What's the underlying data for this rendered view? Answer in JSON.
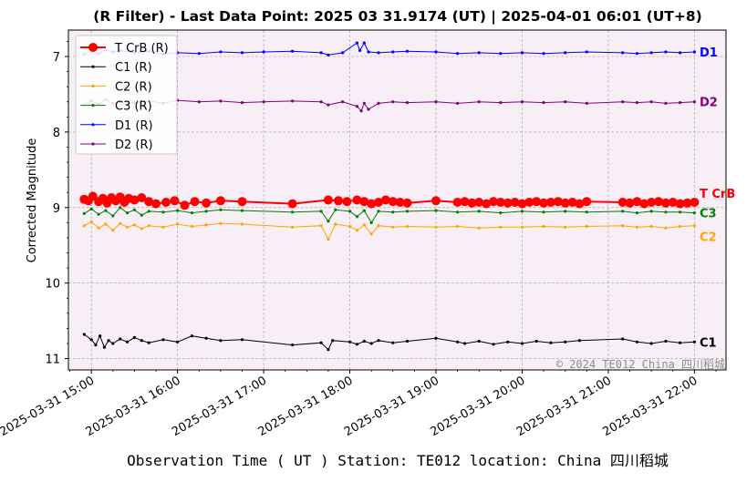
{
  "chart_data": {
    "type": "line",
    "title": "(R Filter) - Last Data Point: 2025 03 31.9174 (UT) | 2025-04-01 06:01 (UT+8)",
    "xlabel": "Observation Time ( UT )  Station: TE012 location: China 四川稻城",
    "ylabel": "Corrected Magnitude",
    "watermark": "© 2024 TE012 China 四川稻城",
    "ylim": [
      11.15,
      6.65
    ],
    "y_inverted": true,
    "xlim": [
      "2025-03-31 14:44",
      "2025-03-31 22:22"
    ],
    "yticks": [
      7,
      8,
      9,
      10,
      11
    ],
    "xticks": [
      "2025-03-31 15:00",
      "2025-03-31 16:00",
      "2025-03-31 17:00",
      "2025-03-31 18:00",
      "2025-03-31 19:00",
      "2025-03-31 20:00",
      "2025-03-31 21:00",
      "2025-03-31 22:00"
    ],
    "grid": true,
    "legend_position": "top-left",
    "series": [
      {
        "name": "T CrB (R)",
        "end_label": "T CrB",
        "color": "#ff0000",
        "x": [
          "14:55",
          "14:58",
          "15:01",
          "15:05",
          "15:08",
          "15:11",
          "15:14",
          "15:17",
          "15:20",
          "15:23",
          "15:26",
          "15:30",
          "15:35",
          "15:40",
          "15:45",
          "15:52",
          "15:58",
          "16:05",
          "16:12",
          "16:20",
          "16:30",
          "16:45",
          "17:20",
          "17:45",
          "17:52",
          "17:58",
          "18:05",
          "18:10",
          "18:15",
          "18:20",
          "18:25",
          "18:30",
          "18:35",
          "18:40",
          "19:00",
          "19:15",
          "19:20",
          "19:25",
          "19:30",
          "19:35",
          "19:40",
          "19:45",
          "19:50",
          "19:55",
          "20:00",
          "20:05",
          "20:10",
          "20:15",
          "20:20",
          "20:25",
          "20:30",
          "20:35",
          "20:40",
          "20:45",
          "21:10",
          "21:15",
          "21:20",
          "21:25",
          "21:30",
          "21:35",
          "21:40",
          "21:45",
          "21:50",
          "21:55",
          "22:00"
        ],
        "y": [
          8.89,
          8.91,
          8.85,
          8.92,
          8.88,
          8.94,
          8.87,
          8.91,
          8.86,
          8.93,
          8.88,
          8.9,
          8.87,
          8.92,
          8.95,
          8.93,
          8.91,
          8.97,
          8.92,
          8.94,
          8.91,
          8.92,
          8.95,
          8.9,
          8.91,
          8.92,
          8.9,
          8.92,
          8.95,
          8.93,
          8.9,
          8.92,
          8.93,
          8.94,
          8.91,
          8.93,
          8.92,
          8.94,
          8.93,
          8.95,
          8.92,
          8.93,
          8.94,
          8.93,
          8.95,
          8.93,
          8.92,
          8.94,
          8.93,
          8.92,
          8.94,
          8.93,
          8.95,
          8.92,
          8.93,
          8.94,
          8.92,
          8.95,
          8.93,
          8.92,
          8.94,
          8.93,
          8.95,
          8.94,
          8.93
        ]
      },
      {
        "name": "C1 (R)",
        "end_label": "C1",
        "color": "#000000",
        "x": [
          "14:55",
          "15:00",
          "15:03",
          "15:06",
          "15:09",
          "15:12",
          "15:15",
          "15:20",
          "15:25",
          "15:30",
          "15:35",
          "15:40",
          "15:50",
          "16:00",
          "16:10",
          "16:20",
          "16:30",
          "16:45",
          "17:20",
          "17:40",
          "17:45",
          "17:48",
          "18:00",
          "18:05",
          "18:10",
          "18:15",
          "18:20",
          "18:30",
          "18:40",
          "19:00",
          "19:15",
          "19:20",
          "19:30",
          "19:40",
          "19:50",
          "20:00",
          "20:10",
          "20:20",
          "20:30",
          "20:40",
          "21:10",
          "21:20",
          "21:30",
          "21:40",
          "21:50",
          "22:00"
        ],
        "y": [
          10.68,
          10.75,
          10.82,
          10.7,
          10.85,
          10.76,
          10.8,
          10.74,
          10.78,
          10.72,
          10.76,
          10.79,
          10.75,
          10.78,
          10.7,
          10.73,
          10.76,
          10.75,
          10.82,
          10.79,
          10.88,
          10.76,
          10.78,
          10.81,
          10.77,
          10.8,
          10.76,
          10.79,
          10.77,
          10.73,
          10.78,
          10.8,
          10.77,
          10.81,
          10.78,
          10.8,
          10.77,
          10.79,
          10.78,
          10.76,
          10.74,
          10.78,
          10.8,
          10.77,
          10.79,
          10.78
        ]
      },
      {
        "name": "C2 (R)",
        "end_label": "C2",
        "color": "#ffa500",
        "x": [
          "14:55",
          "15:00",
          "15:05",
          "15:10",
          "15:15",
          "15:20",
          "15:25",
          "15:30",
          "15:35",
          "15:40",
          "15:50",
          "16:00",
          "16:10",
          "16:20",
          "16:30",
          "16:45",
          "17:20",
          "17:40",
          "17:45",
          "17:50",
          "18:00",
          "18:05",
          "18:10",
          "18:15",
          "18:20",
          "18:30",
          "18:40",
          "19:00",
          "19:15",
          "19:30",
          "19:45",
          "20:00",
          "20:15",
          "20:30",
          "20:45",
          "21:10",
          "21:20",
          "21:30",
          "21:40",
          "21:50",
          "22:00"
        ],
        "y": [
          9.24,
          9.19,
          9.27,
          9.22,
          9.3,
          9.21,
          9.26,
          9.23,
          9.28,
          9.24,
          9.26,
          9.22,
          9.25,
          9.23,
          9.21,
          9.22,
          9.26,
          9.24,
          9.42,
          9.22,
          9.25,
          9.3,
          9.23,
          9.35,
          9.24,
          9.26,
          9.25,
          9.26,
          9.25,
          9.27,
          9.26,
          9.26,
          9.25,
          9.26,
          9.25,
          9.24,
          9.26,
          9.25,
          9.27,
          9.25,
          9.24
        ]
      },
      {
        "name": "C3 (R)",
        "end_label": "C3",
        "color": "#008000",
        "x": [
          "14:55",
          "15:00",
          "15:05",
          "15:10",
          "15:15",
          "15:20",
          "15:25",
          "15:30",
          "15:35",
          "15:40",
          "15:50",
          "16:00",
          "16:10",
          "16:20",
          "16:30",
          "16:45",
          "17:20",
          "17:40",
          "17:45",
          "17:50",
          "18:00",
          "18:05",
          "18:10",
          "18:15",
          "18:20",
          "18:30",
          "18:40",
          "19:00",
          "19:15",
          "19:30",
          "19:45",
          "20:00",
          "20:15",
          "20:30",
          "20:45",
          "21:10",
          "21:20",
          "21:30",
          "21:40",
          "21:50",
          "22:00"
        ],
        "y": [
          9.08,
          9.02,
          9.09,
          9.04,
          9.11,
          9.0,
          9.07,
          9.03,
          9.1,
          9.05,
          9.06,
          9.04,
          9.07,
          9.05,
          9.03,
          9.04,
          9.06,
          9.05,
          9.18,
          9.03,
          9.05,
          9.12,
          9.04,
          9.2,
          9.05,
          9.06,
          9.05,
          9.04,
          9.06,
          9.05,
          9.07,
          9.05,
          9.06,
          9.05,
          9.06,
          9.05,
          9.07,
          9.05,
          9.06,
          9.06,
          9.07
        ]
      },
      {
        "name": "D1 (R)",
        "end_label": "D1",
        "color": "#0000ff",
        "x": [
          "14:55",
          "15:00",
          "15:05",
          "15:10",
          "15:15",
          "15:20",
          "15:30",
          "15:40",
          "15:50",
          "16:00",
          "16:15",
          "16:30",
          "16:45",
          "17:00",
          "17:20",
          "17:40",
          "17:45",
          "17:55",
          "18:05",
          "18:07",
          "18:10",
          "18:13",
          "18:20",
          "18:30",
          "18:40",
          "19:00",
          "19:15",
          "19:30",
          "19:45",
          "20:00",
          "20:15",
          "20:30",
          "20:45",
          "21:10",
          "21:20",
          "21:30",
          "21:40",
          "21:50",
          "22:00"
        ],
        "y": [
          6.97,
          6.93,
          6.96,
          6.91,
          6.94,
          6.92,
          6.95,
          6.93,
          6.97,
          6.95,
          6.96,
          6.94,
          6.95,
          6.94,
          6.93,
          6.95,
          6.98,
          6.95,
          6.82,
          6.92,
          6.82,
          6.94,
          6.95,
          6.94,
          6.93,
          6.94,
          6.96,
          6.95,
          6.96,
          6.95,
          6.96,
          6.95,
          6.94,
          6.95,
          6.96,
          6.95,
          6.94,
          6.95,
          6.94
        ]
      },
      {
        "name": "D2 (R)",
        "end_label": "D2",
        "color": "#800080",
        "x": [
          "14:55",
          "15:00",
          "15:05",
          "15:10",
          "15:15",
          "15:20",
          "15:30",
          "15:40",
          "15:50",
          "16:00",
          "16:15",
          "16:30",
          "16:45",
          "17:00",
          "17:20",
          "17:40",
          "17:45",
          "17:55",
          "18:05",
          "18:08",
          "18:10",
          "18:13",
          "18:20",
          "18:30",
          "18:40",
          "19:00",
          "19:15",
          "19:30",
          "19:45",
          "20:00",
          "20:15",
          "20:30",
          "20:45",
          "21:10",
          "21:20",
          "21:30",
          "21:40",
          "21:50",
          "22:00"
        ],
        "y": [
          7.64,
          7.59,
          7.63,
          7.57,
          7.62,
          7.6,
          7.61,
          7.59,
          7.62,
          7.58,
          7.6,
          7.59,
          7.61,
          7.6,
          7.59,
          7.6,
          7.64,
          7.6,
          7.66,
          7.72,
          7.62,
          7.7,
          7.62,
          7.6,
          7.61,
          7.6,
          7.62,
          7.6,
          7.61,
          7.6,
          7.61,
          7.6,
          7.62,
          7.6,
          7.61,
          7.6,
          7.62,
          7.61,
          7.6
        ]
      }
    ]
  }
}
